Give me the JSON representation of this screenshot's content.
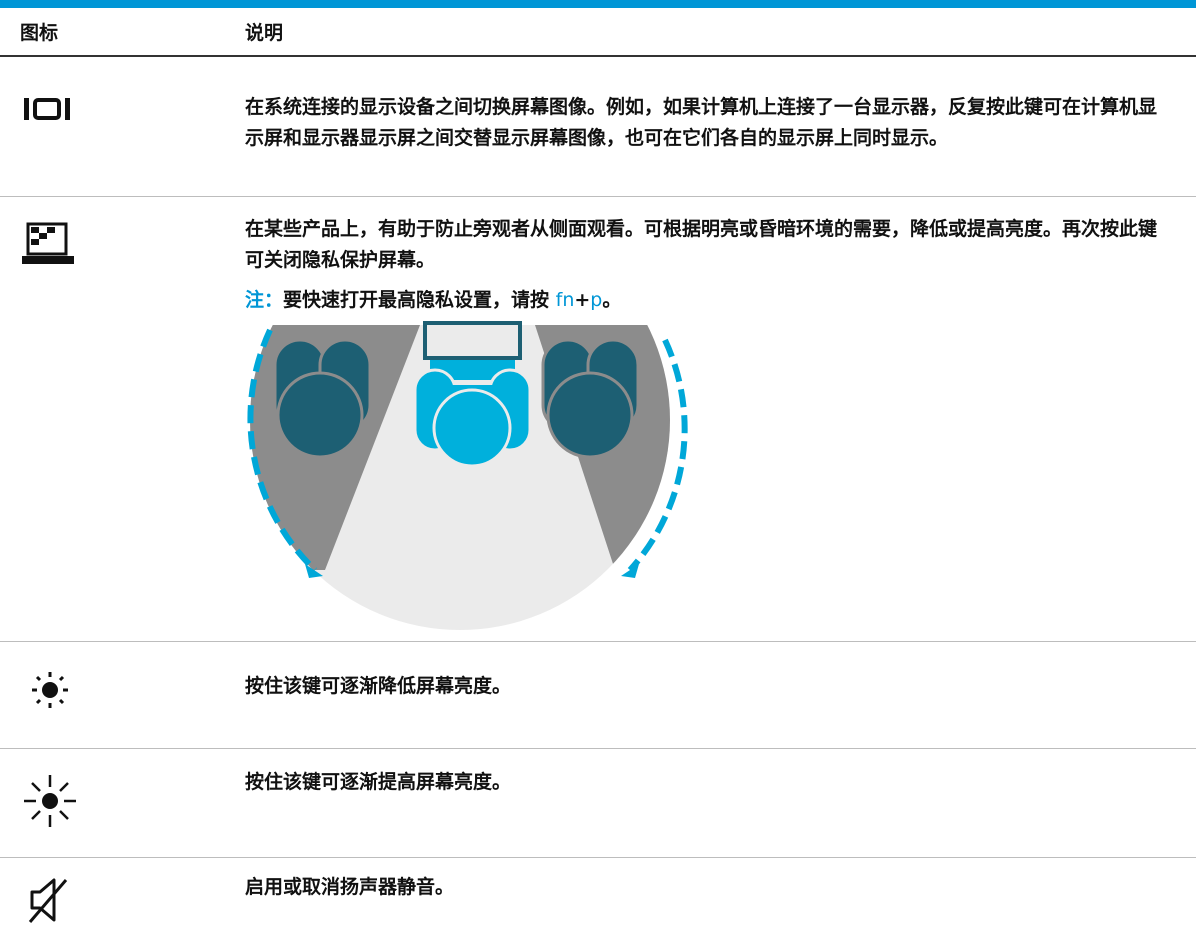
{
  "header": {
    "columns": [
      "图标",
      "说明"
    ]
  },
  "rows": [
    {
      "description": "在系统连接的显示设备之间切换屏幕图像。例如，如果计算机上连接了一台显示器，反复按此键可在计算机显示屏和显示器显示屏之间交替显示屏幕图像，也可在它们各自的显示屏上同时显示。"
    },
    {
      "description": "在某些产品上，有助于防止旁观者从侧面观看。可根据明亮或昏暗环境的需要，降低或提高亮度。再次按此键可关闭隐私保护屏幕。",
      "note": {
        "label": "注：",
        "text": "要快速打开最高隐私设置，请按 ",
        "key1": "fn",
        "plus": "+",
        "key2": "p",
        "end": "。"
      }
    },
    {
      "description": "按住该键可逐渐降低屏幕亮度。"
    },
    {
      "description": "按住该键可逐渐提高屏幕亮度。"
    },
    {
      "description": "启用或取消扬声器静音。"
    }
  ]
}
